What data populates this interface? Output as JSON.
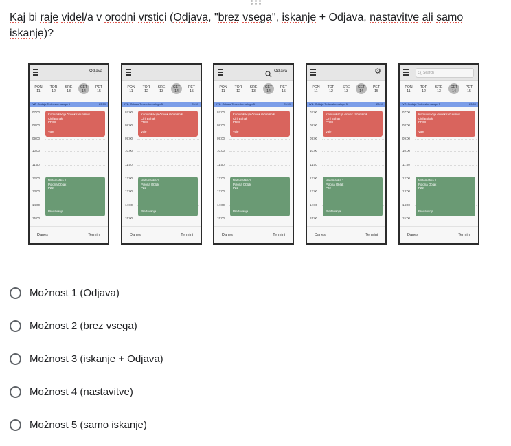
{
  "question": {
    "parts": [
      "Kaj",
      " bi ",
      "raje",
      " ",
      "videl",
      "/a v ",
      "orodni",
      " ",
      "vrstici",
      " (",
      "Odjava",
      ", \"",
      "brez",
      " ",
      "vsega",
      "\", ",
      "iskanje",
      " + Odjava, ",
      "nastavitve",
      " ",
      "ali",
      " ",
      "samo",
      " ",
      "iskanje",
      ")?"
    ]
  },
  "mockups": [
    {
      "header": "logout",
      "title": "Odjava",
      "banner_left": "IVZ: Oddaja Tedenska naloga 5",
      "banner_right": "23:59"
    },
    {
      "header": "none",
      "title": "",
      "banner_left": "IVZ: Oddaja Tedenska naloga 5",
      "banner_right": "23:59"
    },
    {
      "header": "search_logout",
      "title": "Odjava",
      "banner_left": "IVZ: Oddaja Tedenska naloga 5",
      "banner_right": "23:59"
    },
    {
      "header": "settings",
      "title": "",
      "banner_left": "IVZ: Oddaja Tedenska naloga 5",
      "banner_right": "23:59"
    },
    {
      "header": "search_only",
      "title": "",
      "search_placeholder": "Search",
      "banner_left": "IVZ: Oddaja Tedenska naloga 5",
      "banner_right": "23:59"
    }
  ],
  "calendar": {
    "days": [
      {
        "name": "PON",
        "num": "11"
      },
      {
        "name": "TOR",
        "num": "12"
      },
      {
        "name": "SRE",
        "num": "13"
      },
      {
        "name": "ČET",
        "num": "14",
        "active": true
      },
      {
        "name": "PET",
        "num": "15"
      }
    ],
    "hours": [
      "07:00",
      "08:00",
      "09:00",
      "10:00",
      "11:00",
      "12:00",
      "13:00",
      "14:00",
      "15:00"
    ],
    "event_red": {
      "title": "Komunikacija človek računalnik",
      "person": "Ciril Bohak",
      "room": "PR08",
      "type": "Vaje"
    },
    "event_green": {
      "title": "Matematika 1",
      "person": "Polona Oblak",
      "room": "P22",
      "type": "Predavanja"
    },
    "bottom_left": "Danes",
    "bottom_right": "Termini"
  },
  "options": [
    "Možnost 1 (Odjava)",
    "Možnost 2 (brez vsega)",
    "Možnost 3 (iskanje + Odjava)",
    "Možnost 4 (nastavitve)",
    "Možnost 5 (samo iskanje)"
  ],
  "colors": {
    "banner": "#7b9de8",
    "event_red": "#d9645d",
    "event_green": "#6a9a74"
  }
}
